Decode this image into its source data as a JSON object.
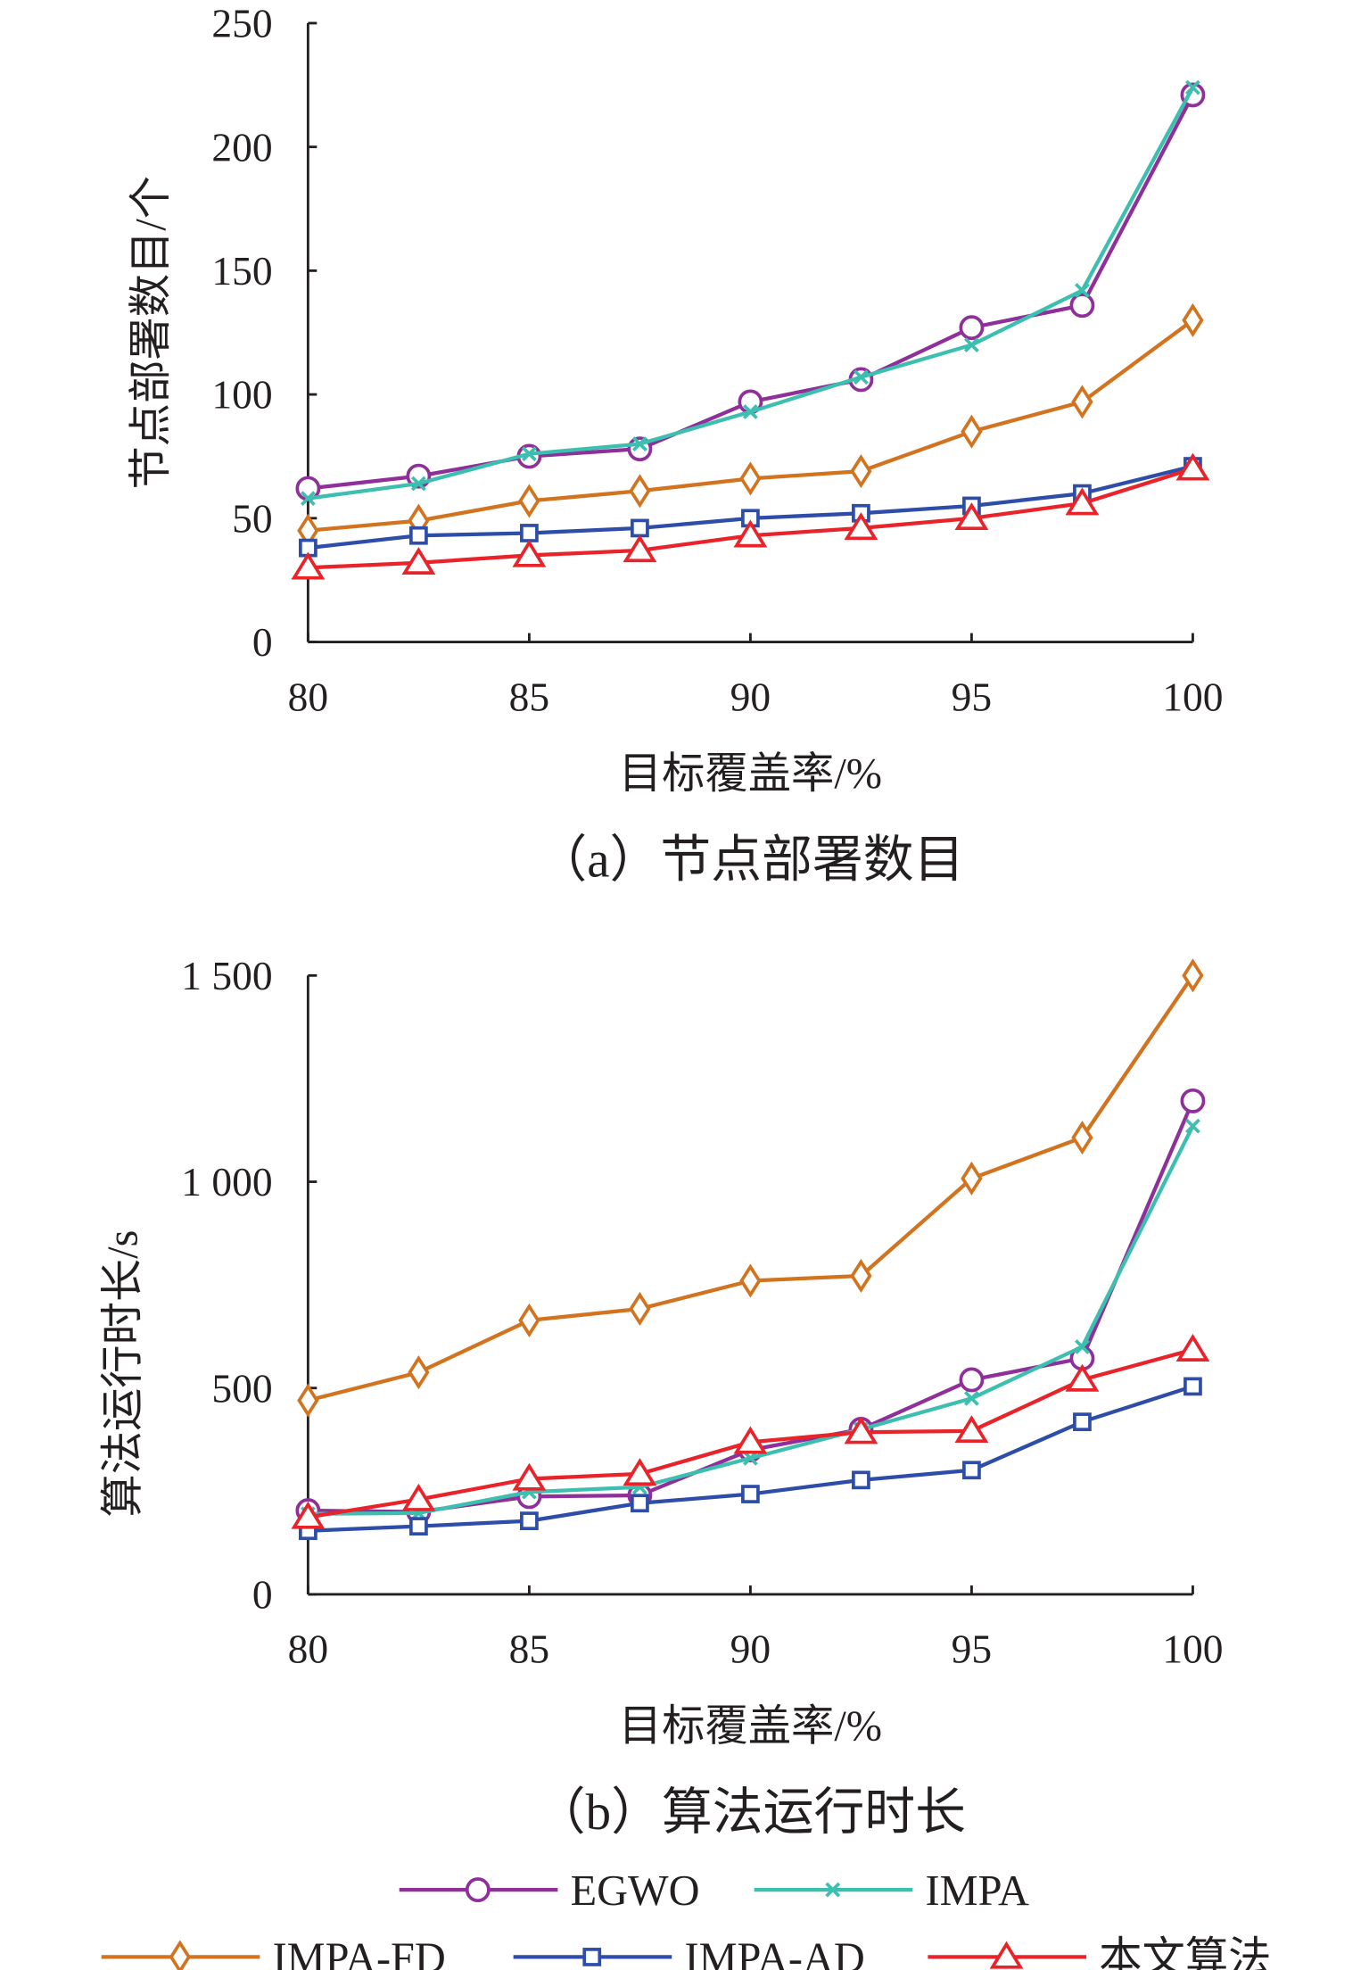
{
  "colors": {
    "EGWO": "#8e2f9a",
    "IMPA": "#3dbfb0",
    "IMPA-FD": "#d2731f",
    "IMPA-AD": "#2d4da8",
    "ours": "#e8232a",
    "axis": "#231f20"
  },
  "legend": [
    "EGWO",
    "IMPA",
    "IMPA-FD",
    "IMPA-AD",
    "本文算法"
  ],
  "chart_data": [
    {
      "type": "line",
      "title": "（a）节点部署数目",
      "xlabel": "目标覆盖率/%",
      "ylabel": "节点部署数目/个",
      "xlim": [
        80,
        100
      ],
      "ylim": [
        0,
        250
      ],
      "xticks": [
        "80",
        "85",
        "90",
        "95",
        "100"
      ],
      "yticks": [
        "0",
        "50",
        "100",
        "150",
        "200",
        "250"
      ],
      "x": [
        80,
        82.5,
        85,
        87.5,
        90,
        92.5,
        95,
        97.5,
        100
      ],
      "series": [
        {
          "name": "EGWO",
          "marker": "circle",
          "values": [
            62,
            67,
            75,
            78,
            97,
            106,
            127,
            136,
            221
          ]
        },
        {
          "name": "IMPA",
          "marker": "x",
          "values": [
            58,
            64,
            76,
            80,
            93,
            107,
            120,
            142,
            224
          ]
        },
        {
          "name": "IMPA-FD",
          "marker": "diamond",
          "values": [
            45,
            49,
            57,
            61,
            66,
            69,
            85,
            97,
            130
          ]
        },
        {
          "name": "IMPA-AD",
          "marker": "square",
          "values": [
            38,
            43,
            44,
            46,
            50,
            52,
            55,
            60,
            71
          ]
        },
        {
          "name": "本文算法",
          "marker": "triangle",
          "values": [
            30,
            32,
            35,
            37,
            43,
            46,
            50,
            56,
            70
          ]
        }
      ]
    },
    {
      "type": "line",
      "title": "（b）算法运行时长",
      "xlabel": "目标覆盖率/%",
      "ylabel": "算法运行时长/s",
      "xlim": [
        80,
        100
      ],
      "ylim": [
        0,
        1500
      ],
      "xticks": [
        "80",
        "85",
        "90",
        "95",
        "100"
      ],
      "yticks": [
        "0",
        "500",
        "1 000",
        "1 500"
      ],
      "x": [
        80,
        82.5,
        85,
        87.5,
        90,
        92.5,
        95,
        97.5,
        100
      ],
      "series": [
        {
          "name": "EGWO",
          "marker": "circle",
          "values": [
            203,
            200,
            237,
            240,
            350,
            400,
            520,
            572,
            1196
          ]
        },
        {
          "name": "IMPA",
          "marker": "x",
          "values": [
            195,
            197,
            248,
            260,
            330,
            400,
            475,
            600,
            1135
          ]
        },
        {
          "name": "IMPA-FD",
          "marker": "diamond",
          "values": [
            470,
            538,
            664,
            692,
            760,
            772,
            1008,
            1107,
            1500
          ]
        },
        {
          "name": "IMPA-AD",
          "marker": "square",
          "values": [
            154,
            165,
            178,
            221,
            243,
            277,
            301,
            418,
            504
          ]
        },
        {
          "name": "本文算法",
          "marker": "triangle",
          "values": [
            187,
            230,
            280,
            292,
            369,
            393,
            396,
            520,
            593
          ]
        }
      ]
    }
  ]
}
